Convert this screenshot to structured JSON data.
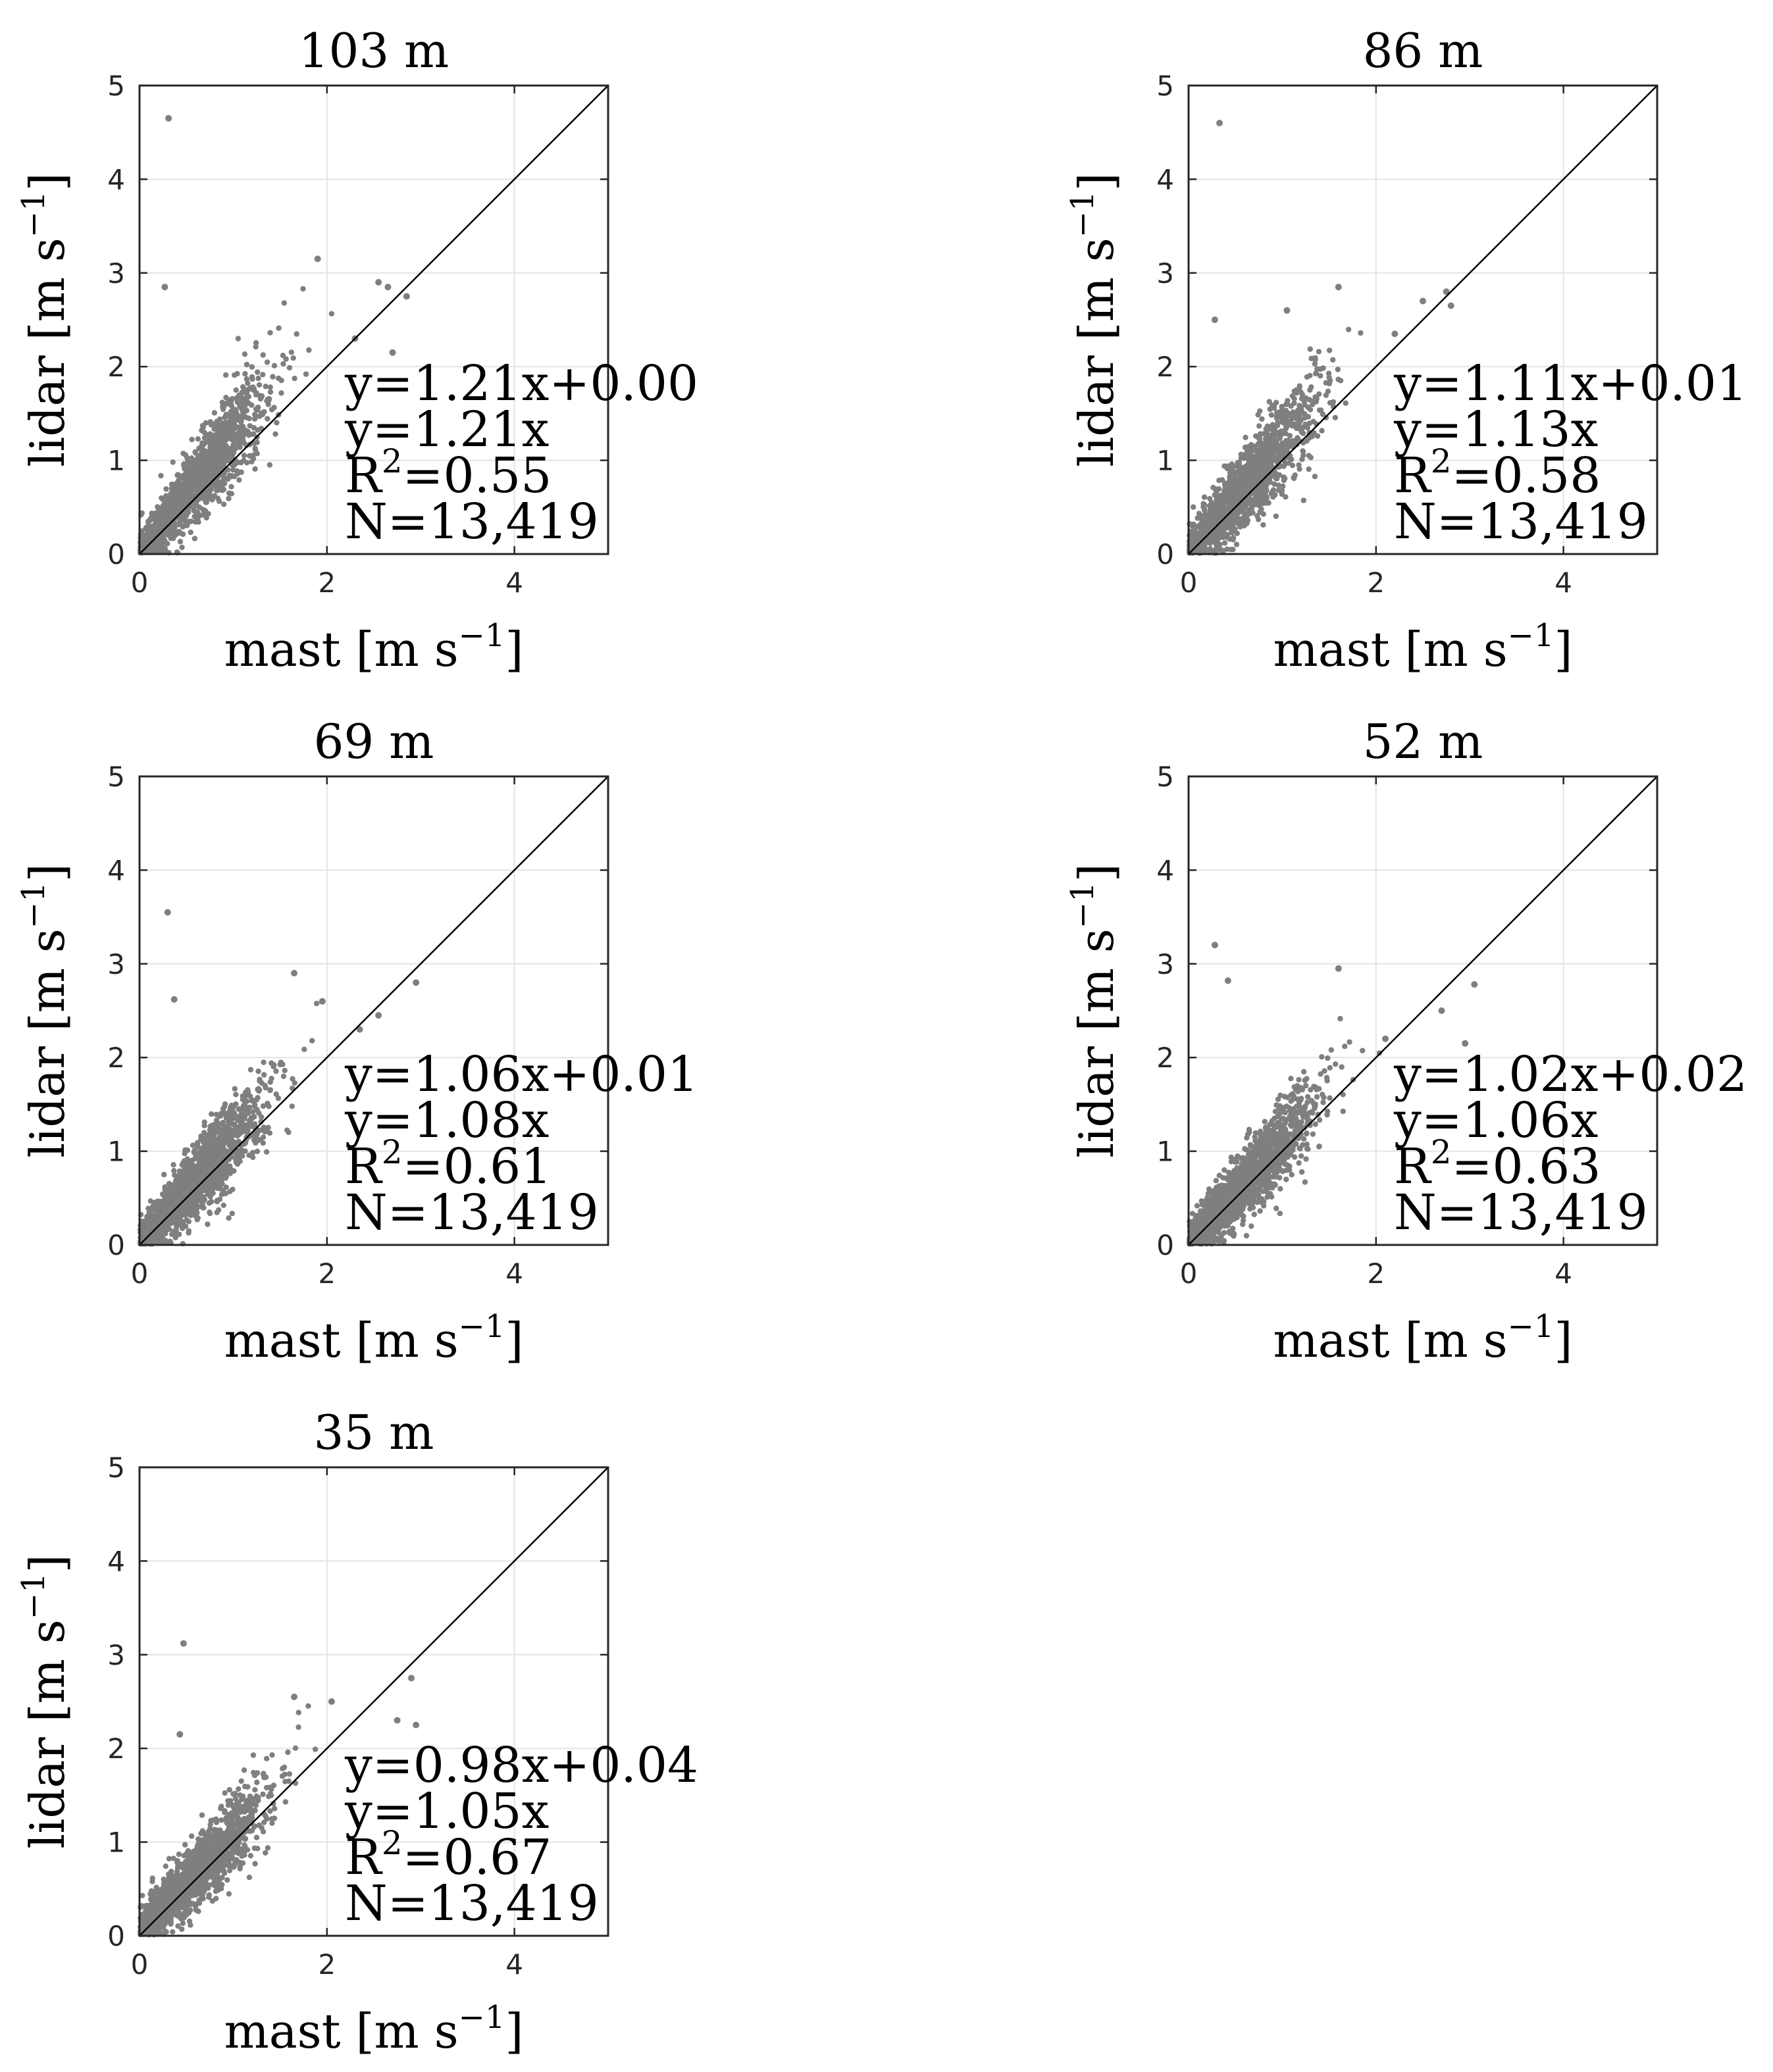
{
  "figure": {
    "background": "#ffffff",
    "point_color": "#7f7f7f",
    "line_color": "#000000",
    "grid_color": "#e3e3e3"
  },
  "chart_data": [
    {
      "type": "scatter",
      "title": "103 m",
      "xlabel": "mast [m s",
      "ylabel": "lidar [m s",
      "unit_exponent": "−1",
      "unit_close": "]",
      "xlim": [
        0,
        5
      ],
      "ylim": [
        0,
        5
      ],
      "xticks": [
        "0",
        "2",
        "4"
      ],
      "yticks": [
        "0",
        "1",
        "2",
        "3",
        "4",
        "5"
      ],
      "grid": true,
      "reference_line": "1:1",
      "slope": 1.21,
      "intercept": 0.0,
      "r2": 0.55,
      "n": 13419,
      "annotations": {
        "fit": "y=1.21x+0.00",
        "fit0": "y=1.21x",
        "r2_prefix": "R",
        "r2_sup": "2",
        "r2_value": "=0.55",
        "n": "N=13,419"
      },
      "outliers": [
        [
          0.31,
          4.65
        ],
        [
          0.27,
          2.85
        ],
        [
          1.9,
          3.15
        ],
        [
          2.55,
          2.9
        ],
        [
          2.65,
          2.85
        ],
        [
          2.85,
          2.75
        ],
        [
          2.7,
          2.15
        ],
        [
          2.3,
          2.3
        ]
      ]
    },
    {
      "type": "scatter",
      "title": "86 m",
      "xlabel": "mast [m s",
      "ylabel": "lidar [m s",
      "unit_exponent": "−1",
      "unit_close": "]",
      "xlim": [
        0,
        5
      ],
      "ylim": [
        0,
        5
      ],
      "xticks": [
        "0",
        "2",
        "4"
      ],
      "yticks": [
        "0",
        "1",
        "2",
        "3",
        "4",
        "5"
      ],
      "grid": true,
      "reference_line": "1:1",
      "slope": 1.11,
      "intercept": 0.01,
      "r2": 0.58,
      "n": 13419,
      "annotations": {
        "fit": "y=1.11x+0.01",
        "fit0": "y=1.13x",
        "r2_prefix": "R",
        "r2_sup": "2",
        "r2_value": "=0.58",
        "n": "N=13,419"
      },
      "outliers": [
        [
          0.33,
          4.6
        ],
        [
          0.28,
          2.5
        ],
        [
          2.75,
          2.8
        ],
        [
          2.8,
          2.65
        ],
        [
          2.5,
          2.7
        ],
        [
          1.6,
          2.85
        ],
        [
          1.05,
          2.6
        ],
        [
          2.2,
          2.35
        ]
      ]
    },
    {
      "type": "scatter",
      "title": "69 m",
      "xlabel": "mast [m s",
      "ylabel": "lidar [m s",
      "unit_exponent": "−1",
      "unit_close": "]",
      "xlim": [
        0,
        5
      ],
      "ylim": [
        0,
        5
      ],
      "xticks": [
        "0",
        "2",
        "4"
      ],
      "yticks": [
        "0",
        "1",
        "2",
        "3",
        "4",
        "5"
      ],
      "grid": true,
      "reference_line": "1:1",
      "slope": 1.06,
      "intercept": 0.01,
      "r2": 0.61,
      "n": 13419,
      "annotations": {
        "fit": "y=1.06x+0.01",
        "fit0": "y=1.08x",
        "r2_prefix": "R",
        "r2_sup": "2",
        "r2_value": "=0.61",
        "n": "N=13,419"
      },
      "outliers": [
        [
          0.3,
          3.55
        ],
        [
          0.37,
          2.62
        ],
        [
          1.65,
          2.9
        ],
        [
          2.95,
          2.8
        ],
        [
          2.55,
          2.45
        ],
        [
          1.95,
          2.6
        ],
        [
          2.35,
          2.3
        ]
      ]
    },
    {
      "type": "scatter",
      "title": "52 m",
      "xlabel": "mast [m s",
      "ylabel": "lidar [m s",
      "unit_exponent": "−1",
      "unit_close": "]",
      "xlim": [
        0,
        5
      ],
      "ylim": [
        0,
        5
      ],
      "xticks": [
        "0",
        "2",
        "4"
      ],
      "yticks": [
        "0",
        "1",
        "2",
        "3",
        "4",
        "5"
      ],
      "grid": true,
      "reference_line": "1:1",
      "slope": 1.02,
      "intercept": 0.02,
      "r2": 0.63,
      "n": 13419,
      "annotations": {
        "fit": "y=1.02x+0.02",
        "fit0": "y=1.06x",
        "r2_prefix": "R",
        "r2_sup": "2",
        "r2_value": "=0.63",
        "n": "N=13,419"
      },
      "outliers": [
        [
          0.28,
          3.2
        ],
        [
          0.42,
          2.82
        ],
        [
          1.6,
          2.95
        ],
        [
          3.05,
          2.78
        ],
        [
          2.7,
          2.5
        ],
        [
          2.95,
          2.15
        ],
        [
          2.1,
          2.2
        ]
      ]
    },
    {
      "type": "scatter",
      "title": "35 m",
      "xlabel": "mast [m s",
      "ylabel": "lidar [m s",
      "unit_exponent": "−1",
      "unit_close": "]",
      "xlim": [
        0,
        5
      ],
      "ylim": [
        0,
        5
      ],
      "xticks": [
        "0",
        "2",
        "4"
      ],
      "yticks": [
        "0",
        "1",
        "2",
        "3",
        "4",
        "5"
      ],
      "grid": true,
      "reference_line": "1:1",
      "slope": 0.98,
      "intercept": 0.04,
      "r2": 0.67,
      "n": 13419,
      "annotations": {
        "fit": "y=0.98x+0.04",
        "fit0": "y=1.05x",
        "r2_prefix": "R",
        "r2_sup": "2",
        "r2_value": "=0.67",
        "n": "N=13,419"
      },
      "outliers": [
        [
          0.47,
          3.12
        ],
        [
          0.43,
          2.15
        ],
        [
          1.65,
          2.55
        ],
        [
          2.05,
          2.5
        ],
        [
          2.9,
          2.75
        ],
        [
          2.95,
          2.25
        ],
        [
          2.75,
          2.3
        ]
      ]
    }
  ]
}
